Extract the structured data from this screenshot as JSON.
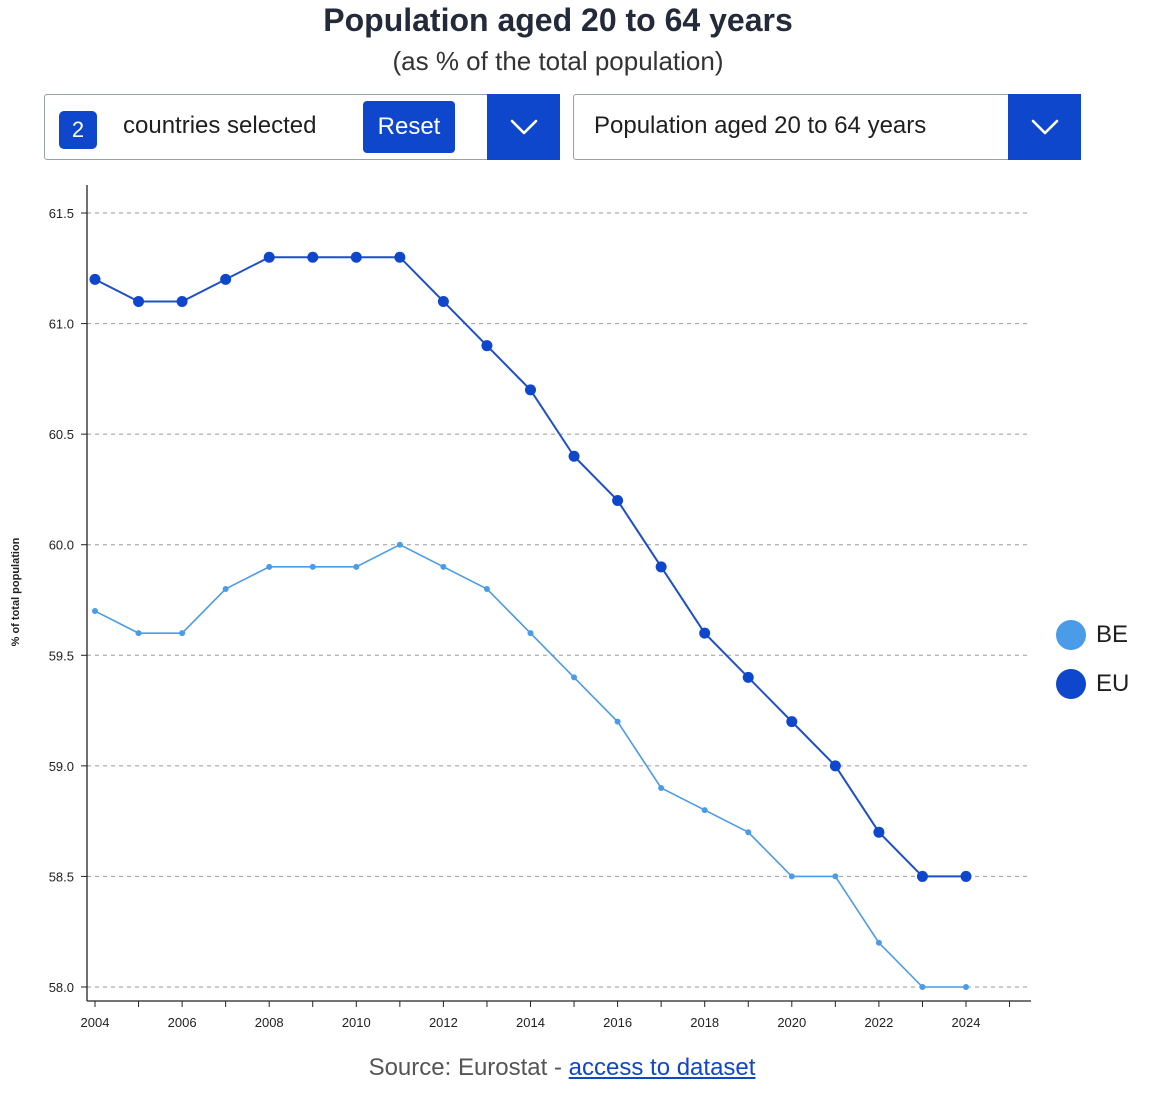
{
  "header": {
    "title": "Population aged 20 to 64 years",
    "subtitle": "(as % of the total population)"
  },
  "country_selector": {
    "count": "2",
    "label": "countries selected",
    "reset_label": "Reset"
  },
  "indicator_selector": {
    "selected": "Population aged 20 to 64 years"
  },
  "icons": {
    "dropdown": "chevron-down-icon"
  },
  "colors": {
    "accent": "#0e47cb",
    "BE": "#4a9be8",
    "EU": "#1f4fc8",
    "EU_marker": "#0e47cb"
  },
  "chart_data": {
    "type": "line",
    "title": "Population aged 20 to 64 years",
    "subtitle": "(as % of the total population)",
    "xlabel": "",
    "ylabel": "% of total population",
    "x": [
      2004,
      2005,
      2006,
      2007,
      2008,
      2009,
      2010,
      2011,
      2012,
      2013,
      2014,
      2015,
      2016,
      2017,
      2018,
      2019,
      2020,
      2021,
      2022,
      2023,
      2024
    ],
    "x_ticks": [
      "2004",
      "2006",
      "2008",
      "2010",
      "2012",
      "2014",
      "2016",
      "2018",
      "2020",
      "2022",
      "2024"
    ],
    "y_ticks": [
      "58.0",
      "58.5",
      "59.0",
      "59.5",
      "60.0",
      "60.5",
      "61.0",
      "61.5"
    ],
    "ylim": [
      58.0,
      61.5
    ],
    "xlim": [
      2004,
      2025.5
    ],
    "grid": true,
    "legend": "right",
    "series": [
      {
        "name": "BE",
        "values": [
          59.7,
          59.6,
          59.6,
          59.8,
          59.9,
          59.9,
          59.9,
          60.0,
          59.9,
          59.8,
          59.6,
          59.4,
          59.2,
          58.9,
          58.8,
          58.7,
          58.5,
          58.5,
          58.2,
          58.0,
          58.0
        ]
      },
      {
        "name": "EU",
        "values": [
          61.2,
          61.1,
          61.1,
          61.2,
          61.3,
          61.3,
          61.3,
          61.3,
          61.1,
          60.9,
          60.7,
          60.4,
          60.2,
          59.9,
          59.6,
          59.4,
          59.2,
          59.0,
          58.7,
          58.5,
          58.5
        ]
      }
    ]
  },
  "footer": {
    "source_prefix": "Source: Eurostat - ",
    "source_link": "access to dataset"
  }
}
